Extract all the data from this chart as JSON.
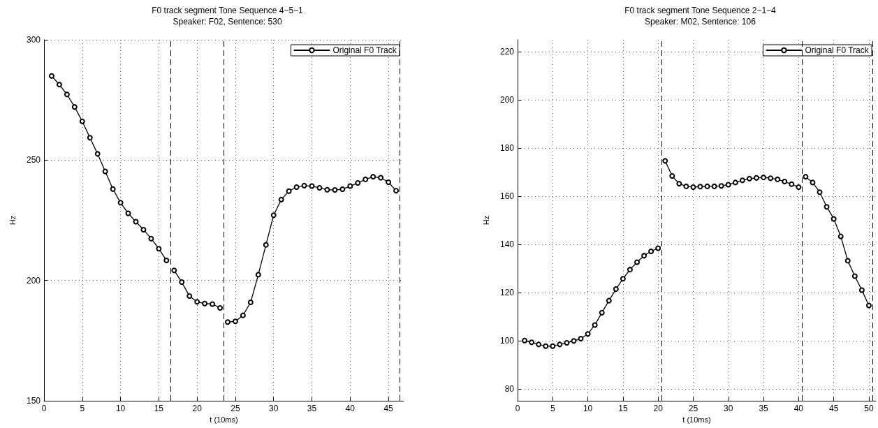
{
  "chart_data": [
    {
      "type": "line",
      "title": "F0 track segment Tone Sequence 4−5−1",
      "subtitle": "Speaker: F02, Sentence: 530",
      "xlabel": "t (10ms)",
      "ylabel": "Hz",
      "series": [
        {
          "name": "Original F0 Track",
          "color": "#000000",
          "x": [
            1,
            2,
            3,
            4,
            5,
            6,
            7,
            8,
            9,
            10,
            11,
            12,
            13,
            14,
            15,
            16,
            16.5,
            17,
            18,
            19,
            20,
            21,
            22,
            23,
            23.5,
            24,
            25,
            26,
            27,
            28,
            29,
            30,
            31,
            32,
            33,
            34,
            35,
            36,
            37,
            38,
            39,
            40,
            41,
            42,
            43,
            44,
            45,
            46
          ],
          "values": [
            285,
            281.4,
            277.3,
            272.1,
            266.1,
            259.3,
            252.6,
            245.3,
            238,
            232.3,
            227.9,
            224.4,
            221.1,
            217.4,
            213.2,
            208.3,
            null,
            204.2,
            199.3,
            193.5,
            191.1,
            190.4,
            190.2,
            188.6,
            null,
            182.7,
            183,
            185.5,
            190.9,
            202.4,
            214.8,
            227.1,
            233.6,
            237.1,
            238.8,
            239.4,
            239.2,
            238.5,
            237.7,
            237.6,
            237.9,
            239.2,
            240.5,
            242,
            243.1,
            242.7,
            240.8,
            237.3
          ]
        }
      ],
      "xlim": [
        0,
        47
      ],
      "xticks": [
        0,
        5,
        10,
        15,
        20,
        25,
        30,
        35,
        40,
        45
      ],
      "ylim": [
        150,
        300
      ],
      "yticks": [
        150,
        200,
        250,
        300
      ],
      "ref_lines": [
        {
          "axis": "x",
          "value": 16.5,
          "line_style": "dashed",
          "color": "#000000"
        },
        {
          "axis": "x",
          "value": 23.5,
          "line_style": "dashed",
          "color": "#000000"
        },
        {
          "axis": "x",
          "value": 46.5,
          "line_style": "dashed",
          "color": "#000000"
        }
      ],
      "grid": true,
      "legend": "top right",
      "marker": "circle",
      "line_style": "solid"
    },
    {
      "type": "line",
      "title": "F0 track segment Tone Sequence 2−1−4",
      "subtitle": "Speaker: M02, Sentence: 106",
      "xlabel": "t (10ms)",
      "ylabel": "Hz",
      "series": [
        {
          "name": "Original F0 Track",
          "color": "#000000",
          "x": [
            1,
            2,
            3,
            4,
            5,
            6,
            7,
            8,
            9,
            10,
            11,
            12,
            13,
            14,
            15,
            16,
            17,
            18,
            19,
            20,
            20.5,
            21,
            22,
            23,
            24,
            25,
            26,
            27,
            28,
            29,
            30,
            31,
            32,
            33,
            34,
            35,
            36,
            37,
            38,
            39,
            40,
            40.5,
            41,
            42,
            43,
            44,
            45,
            46,
            47,
            48,
            49,
            50
          ],
          "values": [
            100,
            99.3,
            98.4,
            97.7,
            97.7,
            98.4,
            99.1,
            99.9,
            100.8,
            102.8,
            106.5,
            111.6,
            116.6,
            121.4,
            125.7,
            129.5,
            132.6,
            135.3,
            137.1,
            138.4,
            null,
            174.7,
            168.4,
            165.2,
            164.1,
            163.8,
            164,
            164.1,
            164.1,
            164.3,
            164.8,
            165.7,
            166.6,
            167.3,
            167.6,
            167.8,
            167.5,
            167,
            166.1,
            165,
            163.8,
            null,
            168.1,
            165.7,
            161.7,
            155.6,
            150.6,
            143.3,
            133.2,
            126.8,
            121,
            114.6
          ]
        }
      ],
      "xlim": [
        0,
        51
      ],
      "xticks": [
        0,
        5,
        10,
        15,
        20,
        25,
        30,
        35,
        40,
        45,
        50
      ],
      "ylim": [
        75,
        225
      ],
      "yticks": [
        80,
        100,
        120,
        140,
        160,
        180,
        200,
        220
      ],
      "ref_lines": [
        {
          "axis": "x",
          "value": 20.5,
          "line_style": "dashed",
          "color": "#000000"
        },
        {
          "axis": "x",
          "value": 40.5,
          "line_style": "dashed",
          "color": "#000000"
        },
        {
          "axis": "x",
          "value": 50.5,
          "line_style": "dashed",
          "color": "#000000"
        }
      ],
      "grid": true,
      "legend": "top right",
      "marker": "circle",
      "line_style": "solid"
    }
  ]
}
